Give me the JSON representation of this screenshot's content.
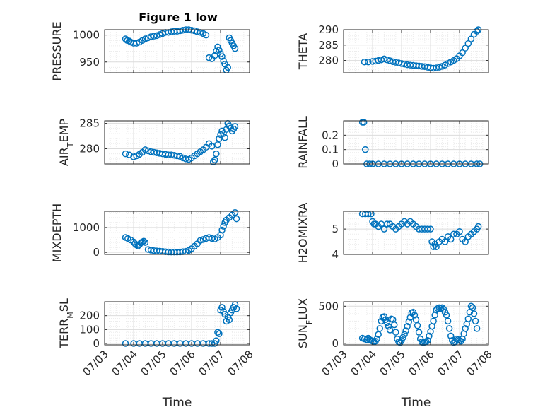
{
  "figure": {
    "title": "Figure 1 low"
  },
  "chart_data": {
    "type": "scatter",
    "marker": "circle-open",
    "marker_color": "#0072BD",
    "grid": "on (major and minor)",
    "xlabel": "Time",
    "xticks": [
      "07/03",
      "07/04",
      "07/05",
      "07/06",
      "07/07",
      "07/08"
    ],
    "xlim": [
      0,
      5
    ],
    "panels": [
      {
        "id": "pressure",
        "ylabel": "PRESSURE",
        "ylim": [
          930,
          1010
        ],
        "yticks": [
          "950",
          "1000"
        ],
        "x": [
          0.72,
          0.78,
          0.85,
          0.9,
          1.0,
          1.1,
          1.2,
          1.3,
          1.4,
          1.5,
          1.6,
          1.7,
          1.8,
          1.9,
          2.0,
          2.1,
          2.2,
          2.3,
          2.4,
          2.5,
          2.6,
          2.7,
          2.8,
          2.9,
          3.0,
          3.1,
          3.2,
          3.3,
          3.4,
          3.5,
          3.6,
          3.7,
          3.8,
          3.85,
          3.9,
          3.95,
          4.0,
          4.05,
          4.1,
          4.15,
          4.2,
          4.25,
          4.3,
          4.35,
          4.4,
          4.45,
          4.5
        ],
        "y": [
          993,
          990,
          989,
          987,
          985,
          985,
          987,
          990,
          993,
          995,
          997,
          998,
          999,
          1001,
          1003,
          1005,
          1005,
          1006,
          1007,
          1007,
          1008,
          1009,
          1010,
          1010,
          1009,
          1008,
          1006,
          1005,
          1003,
          1000,
          958,
          956,
          962,
          970,
          978,
          972,
          965,
          960,
          952,
          946,
          935,
          940,
          995,
          990,
          985,
          980,
          975
        ]
      },
      {
        "id": "theta",
        "ylabel": "THETA",
        "ylim": [
          276,
          290
        ],
        "yticks": [
          "280",
          "285",
          "290"
        ],
        "x": [
          0.72,
          0.85,
          1.0,
          1.1,
          1.2,
          1.3,
          1.4,
          1.5,
          1.6,
          1.7,
          1.8,
          1.9,
          2.0,
          2.1,
          2.2,
          2.3,
          2.4,
          2.5,
          2.6,
          2.7,
          2.8,
          2.9,
          3.0,
          3.1,
          3.2,
          3.3,
          3.4,
          3.5,
          3.6,
          3.7,
          3.8,
          3.9,
          4.0,
          4.1,
          4.2,
          4.3,
          4.4,
          4.5,
          4.6,
          4.65
        ],
        "y": [
          279.5,
          279.5,
          279.7,
          279.8,
          280,
          280.2,
          280.5,
          280.2,
          279.9,
          279.6,
          279.4,
          279.2,
          279,
          278.8,
          278.6,
          278.5,
          278.4,
          278.3,
          278.2,
          278.1,
          278,
          277.8,
          277.6,
          277.5,
          277.6,
          277.8,
          278.1,
          278.5,
          279,
          279.5,
          280,
          280.6,
          281.5,
          282.5,
          284,
          285.5,
          287,
          288.5,
          289.5,
          290
        ]
      },
      {
        "id": "air_temp",
        "ylabel": "AIR_TEMP",
        "ylim": [
          277,
          285.5
        ],
        "yticks": [
          "280",
          "285"
        ],
        "x": [
          0.72,
          0.85,
          1.0,
          1.1,
          1.2,
          1.3,
          1.4,
          1.5,
          1.6,
          1.7,
          1.8,
          1.9,
          2.0,
          2.1,
          2.2,
          2.3,
          2.4,
          2.5,
          2.6,
          2.7,
          2.8,
          2.9,
          3.0,
          3.1,
          3.2,
          3.3,
          3.4,
          3.5,
          3.6,
          3.7,
          3.75,
          3.8,
          3.85,
          3.9,
          3.95,
          4.0,
          4.05,
          4.1,
          4.15,
          4.2,
          4.25,
          4.3,
          4.35,
          4.4,
          4.45,
          4.5
        ],
        "y": [
          279,
          278.8,
          278.4,
          278.6,
          278.9,
          279.3,
          279.8,
          279.6,
          279.4,
          279.3,
          279.2,
          279.1,
          279,
          278.9,
          278.8,
          278.8,
          278.7,
          278.6,
          278.5,
          278.2,
          278,
          277.9,
          278.2,
          278.6,
          279,
          279.4,
          279.8,
          280.3,
          281,
          280.5,
          277.4,
          277.8,
          279,
          280.8,
          282,
          282.8,
          283.5,
          283,
          282.2,
          283.8,
          285,
          284.5,
          284,
          283.5,
          283.9,
          284.4
        ]
      },
      {
        "id": "rainfall",
        "ylabel": "RAINFALL",
        "ylim": [
          0,
          0.3
        ],
        "yticks": [
          "0",
          "0.1",
          "0.2"
        ],
        "x": [
          0.65,
          0.7,
          0.75,
          0.8,
          0.9,
          1.0,
          1.2,
          1.4,
          1.6,
          1.8,
          2.0,
          2.2,
          2.4,
          2.6,
          2.8,
          3.0,
          3.2,
          3.4,
          3.6,
          3.8,
          4.0,
          4.2,
          4.4,
          4.6,
          4.7
        ],
        "y": [
          0.29,
          0.29,
          0.1,
          0,
          0,
          0,
          0,
          0,
          0,
          0,
          0,
          0,
          0,
          0,
          0,
          0,
          0,
          0,
          0,
          0,
          0,
          0,
          0,
          0,
          0
        ]
      },
      {
        "id": "mixdepth",
        "ylabel": "MIXDEPTH",
        "ylim": [
          -80,
          1650
        ],
        "yticks": [
          "0",
          "1000"
        ],
        "x": [
          0.72,
          0.8,
          0.9,
          1.0,
          1.05,
          1.1,
          1.15,
          1.2,
          1.25,
          1.3,
          1.35,
          1.4,
          1.5,
          1.6,
          1.7,
          1.8,
          1.9,
          2.0,
          2.1,
          2.2,
          2.3,
          2.4,
          2.5,
          2.6,
          2.7,
          2.8,
          2.9,
          3.0,
          3.1,
          3.2,
          3.3,
          3.4,
          3.5,
          3.6,
          3.7,
          3.8,
          3.9,
          4.0,
          4.05,
          4.1,
          4.15,
          4.2,
          4.3,
          4.4,
          4.5,
          4.55
        ],
        "y": [
          600,
          560,
          500,
          420,
          350,
          300,
          260,
          310,
          380,
          420,
          450,
          400,
          120,
          90,
          70,
          60,
          50,
          40,
          25,
          20,
          15,
          15,
          15,
          20,
          30,
          40,
          80,
          150,
          250,
          350,
          480,
          520,
          560,
          600,
          560,
          540,
          600,
          700,
          900,
          1050,
          1200,
          1300,
          1400,
          1500,
          1600,
          1350
        ]
      },
      {
        "id": "h2omixra",
        "ylabel": "H2OMIXRA",
        "ylim": [
          4,
          5.7
        ],
        "yticks": [
          "4",
          "5"
        ],
        "x": [
          0.65,
          0.75,
          0.85,
          0.95,
          1.0,
          1.05,
          1.1,
          1.2,
          1.3,
          1.4,
          1.5,
          1.6,
          1.7,
          1.8,
          1.9,
          2.0,
          2.1,
          2.2,
          2.3,
          2.4,
          2.5,
          2.6,
          2.7,
          2.8,
          2.9,
          3.0,
          3.05,
          3.1,
          3.15,
          3.2,
          3.3,
          3.4,
          3.5,
          3.6,
          3.7,
          3.8,
          3.9,
          4.0,
          4.1,
          4.2,
          4.3,
          4.4,
          4.5,
          4.6,
          4.65
        ],
        "y": [
          5.6,
          5.6,
          5.6,
          5.6,
          5.3,
          5.2,
          5.2,
          5.1,
          5.2,
          5.0,
          5.2,
          5.2,
          5.1,
          5.0,
          5.1,
          5.2,
          5.3,
          5.2,
          5.3,
          5.2,
          5.1,
          5.0,
          5.0,
          5.0,
          5.0,
          5.0,
          4.5,
          4.3,
          4.4,
          4.3,
          4.5,
          4.6,
          4.5,
          4.7,
          4.6,
          4.8,
          4.8,
          4.9,
          4.6,
          4.5,
          4.7,
          4.8,
          4.9,
          5.0,
          5.1
        ]
      },
      {
        "id": "terr_msl",
        "ylabel": "TERR_MSL",
        "ylim": [
          -10,
          300
        ],
        "yticks": [
          "0",
          "100",
          "200"
        ],
        "x": [
          0.72,
          1.0,
          1.2,
          1.4,
          1.6,
          1.8,
          2.0,
          2.2,
          2.4,
          2.6,
          2.8,
          3.0,
          3.2,
          3.4,
          3.6,
          3.7,
          3.8,
          3.85,
          3.9,
          3.95,
          4.0,
          4.05,
          4.1,
          4.15,
          4.2,
          4.25,
          4.3,
          4.35,
          4.4,
          4.45,
          4.5,
          4.55
        ],
        "y": [
          0,
          0,
          0,
          0,
          0,
          0,
          0,
          0,
          0,
          0,
          0,
          0,
          0,
          0,
          0,
          0,
          0,
          20,
          80,
          70,
          240,
          260,
          230,
          210,
          160,
          190,
          170,
          220,
          240,
          260,
          280,
          250
        ]
      },
      {
        "id": "sun_flux",
        "ylabel": "SUN_FLUX",
        "ylim": [
          -20,
          560
        ],
        "yticks": [
          "0",
          "500"
        ],
        "x": [
          0.65,
          0.72,
          0.8,
          0.85,
          0.9,
          0.95,
          1.0,
          1.05,
          1.1,
          1.15,
          1.2,
          1.25,
          1.3,
          1.35,
          1.4,
          1.45,
          1.5,
          1.55,
          1.6,
          1.65,
          1.7,
          1.75,
          1.8,
          1.85,
          1.9,
          1.95,
          2.0,
          2.05,
          2.1,
          2.15,
          2.2,
          2.25,
          2.3,
          2.35,
          2.4,
          2.45,
          2.5,
          2.55,
          2.6,
          2.65,
          2.7,
          2.75,
          2.8,
          2.85,
          2.9,
          2.95,
          3.0,
          3.05,
          3.1,
          3.15,
          3.2,
          3.25,
          3.3,
          3.35,
          3.4,
          3.45,
          3.5,
          3.55,
          3.6,
          3.65,
          3.7,
          3.75,
          3.8,
          3.85,
          3.9,
          3.95,
          4.0,
          4.05,
          4.1,
          4.15,
          4.2,
          4.25,
          4.3,
          4.35,
          4.4,
          4.45,
          4.5,
          4.55,
          4.6
        ],
        "y": [
          70,
          60,
          50,
          70,
          50,
          40,
          30,
          20,
          30,
          60,
          120,
          200,
          300,
          350,
          360,
          320,
          280,
          230,
          180,
          330,
          320,
          250,
          150,
          60,
          20,
          10,
          40,
          80,
          120,
          170,
          230,
          290,
          350,
          410,
          420,
          380,
          320,
          240,
          150,
          60,
          20,
          10,
          15,
          20,
          40,
          100,
          160,
          230,
          300,
          380,
          450,
          470,
          480,
          470,
          480,
          460,
          420,
          380,
          300,
          200,
          100,
          40,
          10,
          20,
          60,
          50,
          40,
          30,
          60,
          130,
          200,
          260,
          330,
          420,
          500,
          480,
          400,
          300,
          200
        ]
      }
    ]
  }
}
